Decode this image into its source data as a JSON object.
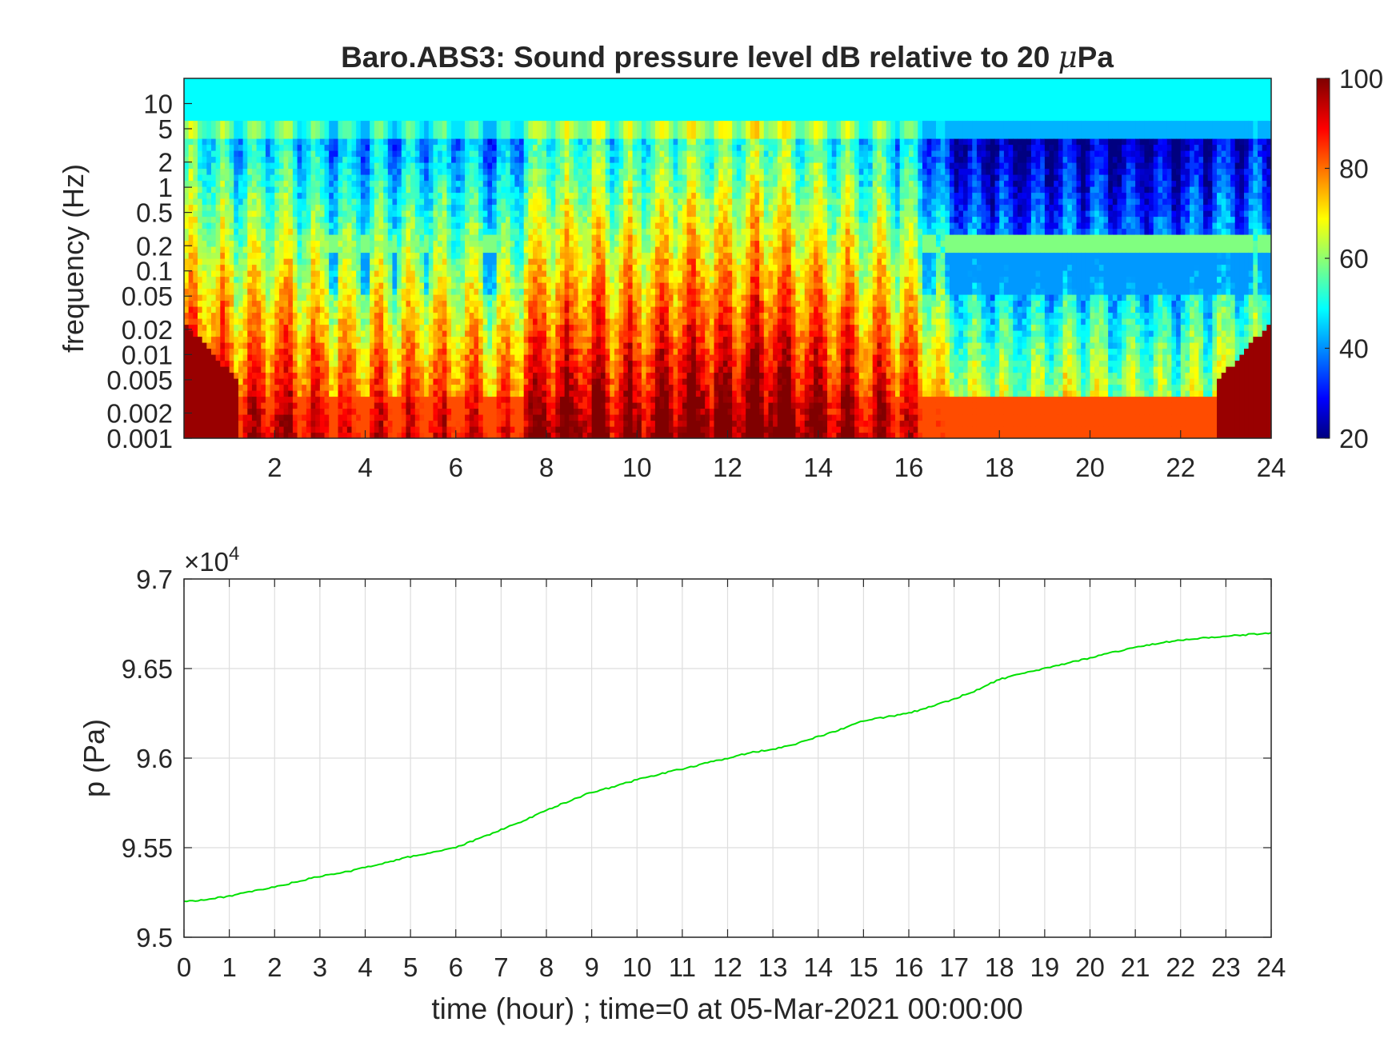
{
  "chart_data": [
    {
      "type": "heatmap",
      "title_prefix": "Baro.ABS3: Sound pressure level dB relative to 20 ",
      "title_mu": "μ",
      "title_suffix": "Pa",
      "ylabel": "frequency (Hz)",
      "xlim": [
        0,
        24
      ],
      "ylim": [
        0.001,
        20
      ],
      "yscale": "log",
      "xticks": [
        2,
        4,
        6,
        8,
        10,
        12,
        14,
        16,
        18,
        20,
        22,
        24
      ],
      "xtick_labels": [
        "2",
        "4",
        "6",
        "8",
        "10",
        "12",
        "14",
        "16",
        "18",
        "20",
        "22",
        "24"
      ],
      "yticks": [
        0.001,
        0.002,
        0.005,
        0.01,
        0.02,
        0.05,
        0.1,
        0.2,
        0.5,
        1,
        2,
        5,
        10
      ],
      "ytick_labels": [
        "0.001",
        "0.002",
        "0.005",
        "0.01",
        "0.02",
        "0.05",
        "0.1",
        "0.2",
        "0.5",
        "1",
        "2",
        "5",
        "10"
      ],
      "colorbar": {
        "colormap": "jet",
        "clim": [
          20,
          100
        ],
        "ticks": [
          20,
          40,
          60,
          80,
          100
        ],
        "tick_labels": [
          "20",
          "40",
          "60",
          "80",
          "100"
        ]
      },
      "activity_by_hour": {
        "hours": [
          0,
          1,
          2,
          3,
          4,
          5,
          6,
          7,
          8,
          9,
          10,
          11,
          12,
          13,
          14,
          15,
          16,
          17,
          18,
          19,
          20,
          21,
          22,
          23,
          24
        ],
        "level_db": [
          88,
          84,
          86,
          82,
          78,
          80,
          80,
          76,
          92,
          90,
          88,
          94,
          92,
          96,
          90,
          86,
          84,
          62,
          60,
          60,
          62,
          60,
          60,
          66,
          64
        ]
      }
    },
    {
      "type": "line",
      "ylabel": "p (Pa)",
      "xlabel": "time (hour) ; time=0 at 05-Mar-2021 00:00:00",
      "exponent_base": "×10",
      "exponent_power": "4",
      "xlim": [
        0,
        24
      ],
      "ylim": [
        95000,
        97000
      ],
      "grid": true,
      "xticks": [
        0,
        1,
        2,
        3,
        4,
        5,
        6,
        7,
        8,
        9,
        10,
        11,
        12,
        13,
        14,
        15,
        16,
        17,
        18,
        19,
        20,
        21,
        22,
        23,
        24
      ],
      "xtick_labels": [
        "0",
        "1",
        "2",
        "3",
        "4",
        "5",
        "6",
        "7",
        "8",
        "9",
        "10",
        "11",
        "12",
        "13",
        "14",
        "15",
        "16",
        "17",
        "18",
        "19",
        "20",
        "21",
        "22",
        "23",
        "24"
      ],
      "yticks": [
        95000,
        95500,
        96000,
        96500,
        97000
      ],
      "ytick_labels": [
        "9.5",
        "9.55",
        "9.6",
        "9.65",
        "9.7"
      ],
      "line_color": "#00e000",
      "series": [
        {
          "x": [
            0,
            0.5,
            1,
            1.5,
            2,
            2.5,
            3,
            3.5,
            4,
            4.5,
            5,
            5.5,
            6,
            6.5,
            7,
            7.5,
            8,
            8.5,
            9,
            9.5,
            10,
            10.5,
            11,
            11.5,
            12,
            12.5,
            13,
            13.5,
            14,
            14.5,
            15,
            15.5,
            16,
            16.5,
            17,
            17.5,
            18,
            18.5,
            19,
            19.5,
            20,
            20.5,
            21,
            21.5,
            22,
            22.5,
            23,
            23.5,
            24
          ],
          "y": [
            95200,
            95210,
            95230,
            95255,
            95280,
            95310,
            95340,
            95360,
            95390,
            95420,
            95450,
            95475,
            95500,
            95550,
            95600,
            95650,
            95710,
            95760,
            95810,
            95840,
            95880,
            95910,
            95940,
            95970,
            96000,
            96030,
            96050,
            96080,
            96120,
            96160,
            96210,
            96230,
            96250,
            96290,
            96330,
            96380,
            96440,
            96470,
            96500,
            96530,
            96560,
            96590,
            96620,
            96640,
            96660,
            96670,
            96680,
            96690,
            96700
          ]
        }
      ]
    }
  ]
}
